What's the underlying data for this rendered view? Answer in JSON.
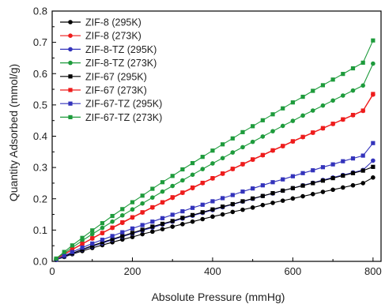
{
  "chart_data": {
    "type": "line",
    "xlabel": "Absolute Pressure (mmHg)",
    "ylabel": "Quantity Adsorbed (mmol/g)",
    "xlim": [
      0,
      820
    ],
    "ylim": [
      0,
      0.8
    ],
    "x_ticks": [
      0,
      200,
      400,
      600,
      800
    ],
    "y_ticks": [
      0.0,
      0.1,
      0.2,
      0.3,
      0.4,
      0.5,
      0.6,
      0.7,
      0.8
    ],
    "x_tick_labels": [
      "0",
      "200",
      "400",
      "600",
      "800"
    ],
    "y_tick_labels": [
      "0.0",
      "0.1",
      "0.2",
      "0.3",
      "0.4",
      "0.5",
      "0.6",
      "0.7",
      "0.8"
    ],
    "grid": false,
    "legend_position": "top-left",
    "x": [
      10,
      30,
      50,
      75,
      100,
      125,
      150,
      175,
      200,
      225,
      250,
      275,
      300,
      325,
      350,
      375,
      400,
      425,
      450,
      475,
      500,
      525,
      550,
      575,
      600,
      625,
      650,
      675,
      700,
      725,
      750,
      775,
      800
    ],
    "series": [
      {
        "name": "ZIF-8 (295K)",
        "color": "#000000",
        "marker": "circle",
        "values": [
          0.005,
          0.014,
          0.023,
          0.033,
          0.043,
          0.052,
          0.061,
          0.07,
          0.078,
          0.087,
          0.095,
          0.103,
          0.111,
          0.119,
          0.127,
          0.135,
          0.143,
          0.15,
          0.158,
          0.165,
          0.172,
          0.18,
          0.187,
          0.194,
          0.201,
          0.208,
          0.215,
          0.222,
          0.229,
          0.236,
          0.243,
          0.25,
          0.268
        ]
      },
      {
        "name": "ZIF-8 (273K)",
        "color": "#ee1c1c",
        "marker": "circle",
        "values": [
          0.007,
          0.022,
          0.037,
          0.055,
          0.073,
          0.09,
          0.107,
          0.123,
          0.14,
          0.156,
          0.172,
          0.188,
          0.203,
          0.219,
          0.234,
          0.25,
          0.265,
          0.28,
          0.295,
          0.31,
          0.325,
          0.339,
          0.354,
          0.368,
          0.383,
          0.397,
          0.411,
          0.425,
          0.439,
          0.453,
          0.467,
          0.481,
          0.533
        ]
      },
      {
        "name": "ZIF-8-TZ (295K)",
        "color": "#3333bb",
        "marker": "circle",
        "values": [
          0.005,
          0.015,
          0.025,
          0.037,
          0.048,
          0.058,
          0.069,
          0.079,
          0.089,
          0.099,
          0.108,
          0.118,
          0.127,
          0.137,
          0.146,
          0.155,
          0.164,
          0.173,
          0.182,
          0.191,
          0.2,
          0.209,
          0.217,
          0.226,
          0.234,
          0.243,
          0.251,
          0.26,
          0.268,
          0.276,
          0.284,
          0.292,
          0.322
        ]
      },
      {
        "name": "ZIF-8-TZ (273K)",
        "color": "#1e9b3c",
        "marker": "circle",
        "values": [
          0.008,
          0.026,
          0.044,
          0.066,
          0.087,
          0.107,
          0.127,
          0.147,
          0.166,
          0.185,
          0.204,
          0.223,
          0.241,
          0.259,
          0.277,
          0.295,
          0.313,
          0.33,
          0.348,
          0.365,
          0.382,
          0.399,
          0.416,
          0.433,
          0.449,
          0.466,
          0.482,
          0.498,
          0.514,
          0.53,
          0.546,
          0.562,
          0.632
        ]
      },
      {
        "name": "ZIF-67 (295K)",
        "color": "#000000",
        "marker": "square",
        "values": [
          0.006,
          0.016,
          0.026,
          0.038,
          0.05,
          0.061,
          0.071,
          0.081,
          0.091,
          0.101,
          0.111,
          0.12,
          0.129,
          0.139,
          0.148,
          0.157,
          0.166,
          0.175,
          0.183,
          0.192,
          0.201,
          0.209,
          0.218,
          0.226,
          0.234,
          0.242,
          0.25,
          0.258,
          0.266,
          0.274,
          0.282,
          0.29,
          0.302
        ]
      },
      {
        "name": "ZIF-67 (273K)",
        "color": "#ee1c1c",
        "marker": "square",
        "values": [
          0.007,
          0.023,
          0.038,
          0.056,
          0.074,
          0.091,
          0.108,
          0.125,
          0.141,
          0.157,
          0.173,
          0.189,
          0.205,
          0.22,
          0.236,
          0.251,
          0.266,
          0.281,
          0.296,
          0.311,
          0.326,
          0.34,
          0.355,
          0.369,
          0.384,
          0.398,
          0.412,
          0.426,
          0.44,
          0.454,
          0.468,
          0.482,
          0.535
        ]
      },
      {
        "name": "ZIF-67-TZ (295K)",
        "color": "#3333bb",
        "marker": "square",
        "values": [
          0.006,
          0.018,
          0.03,
          0.044,
          0.057,
          0.069,
          0.081,
          0.093,
          0.105,
          0.116,
          0.127,
          0.138,
          0.149,
          0.16,
          0.171,
          0.181,
          0.192,
          0.202,
          0.212,
          0.223,
          0.233,
          0.243,
          0.253,
          0.262,
          0.272,
          0.282,
          0.291,
          0.301,
          0.31,
          0.32,
          0.329,
          0.338,
          0.378
        ]
      },
      {
        "name": "ZIF-67-TZ (273K)",
        "color": "#1e9b3c",
        "marker": "square",
        "values": [
          0.009,
          0.03,
          0.051,
          0.075,
          0.099,
          0.122,
          0.145,
          0.167,
          0.189,
          0.21,
          0.232,
          0.253,
          0.273,
          0.294,
          0.314,
          0.334,
          0.354,
          0.374,
          0.393,
          0.413,
          0.432,
          0.451,
          0.47,
          0.489,
          0.508,
          0.526,
          0.545,
          0.563,
          0.581,
          0.599,
          0.617,
          0.635,
          0.706
        ]
      }
    ]
  }
}
